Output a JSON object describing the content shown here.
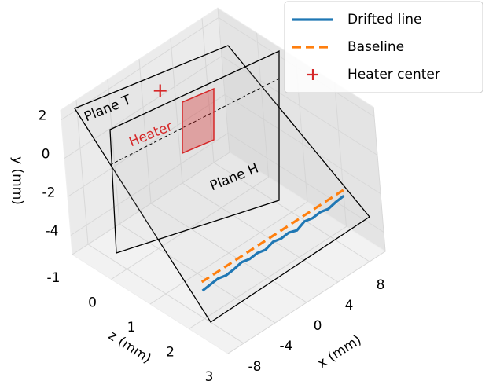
{
  "chart_data": {
    "type": "line3d",
    "xlabel": "x (mm)",
    "ylabel": "y (mm)",
    "zlabel": "z (mm)",
    "xlim": [
      -10,
      10
    ],
    "ylim": [
      -5,
      2.5
    ],
    "zlim": [
      -1,
      3
    ],
    "xticks": [
      -8,
      -4,
      0,
      4,
      8
    ],
    "yticks": [
      -4,
      -2,
      0,
      2
    ],
    "zticks": [
      -1,
      0,
      1,
      2,
      3
    ],
    "grid": true,
    "legend": "upper right",
    "annotations": [
      "Plane T",
      "Plane H",
      "Heater"
    ],
    "series": [
      {
        "name": "Drifted line",
        "color": "#1f77b4",
        "style": "solid",
        "x": [
          -8,
          -7,
          -6,
          -5,
          -4,
          -3,
          -2,
          -1,
          0,
          1,
          2,
          3,
          4,
          5,
          6,
          7,
          8,
          9,
          10
        ],
        "y": [
          -3.55,
          -3.5,
          -3.45,
          -3.55,
          -3.5,
          -3.4,
          -3.5,
          -3.45,
          -3.55,
          -3.4,
          -3.5,
          -3.45,
          -3.6,
          -3.4,
          -3.5,
          -3.45,
          -3.55,
          -3.45,
          -3.4
        ],
        "z": [
          2,
          2,
          2,
          2,
          2,
          2,
          2,
          2,
          2,
          2,
          2,
          2,
          2,
          2,
          2,
          2,
          2,
          2,
          2
        ]
      },
      {
        "name": "Baseline",
        "color": "#ff7f0e",
        "style": "dashed",
        "x": [
          -8,
          10
        ],
        "y": [
          -3.1,
          -3.1
        ],
        "z": [
          2,
          2
        ]
      },
      {
        "name": "Heater center",
        "color": "#d62728",
        "style": "marker",
        "x": [
          0
        ],
        "y": [
          1.5
        ],
        "z": [
          -0.5
        ]
      }
    ]
  }
}
